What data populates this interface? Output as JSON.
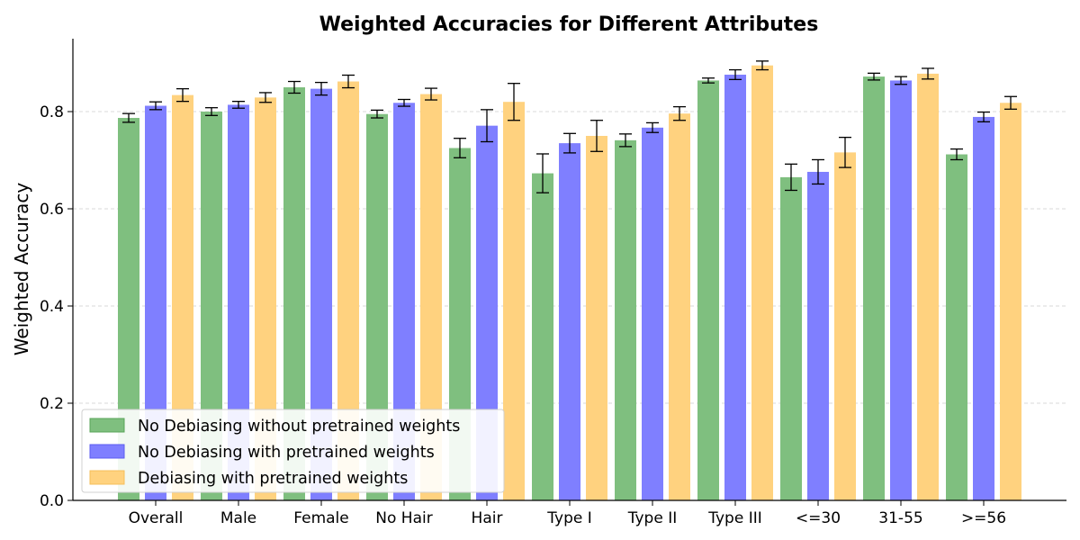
{
  "chart_data": {
    "type": "bar",
    "title": "Weighted Accuracies for Different Attributes",
    "xlabel": "",
    "ylabel": "Weighted Accuracy",
    "ylim": [
      0,
      0.95
    ],
    "yticks": [
      0.0,
      0.2,
      0.4,
      0.6,
      0.8
    ],
    "ytick_labels": [
      "0.0",
      "0.2",
      "0.4",
      "0.6",
      "0.8"
    ],
    "grid": "horizontal-dashed",
    "legend_position": "lower-left",
    "categories": [
      "Overall",
      "Male",
      "Female",
      "No Hair",
      "Hair",
      "Type I",
      "Type II",
      "Type III",
      "<=30",
      "31-55",
      ">=56"
    ],
    "series": [
      {
        "name": "No Debiasing without pretrained weights",
        "color": "#7fbf7f",
        "edge": "#5aa55a",
        "values": [
          0.787,
          0.8,
          0.85,
          0.795,
          0.725,
          0.673,
          0.741,
          0.864,
          0.665,
          0.872,
          0.712
        ],
        "errors": [
          0.009,
          0.008,
          0.012,
          0.008,
          0.02,
          0.04,
          0.013,
          0.005,
          0.027,
          0.007,
          0.011
        ]
      },
      {
        "name": "No Debiasing with pretrained weights",
        "color": "#7f7fff",
        "edge": "#5c5cf0",
        "values": [
          0.812,
          0.814,
          0.847,
          0.818,
          0.771,
          0.735,
          0.767,
          0.876,
          0.676,
          0.864,
          0.789
        ],
        "errors": [
          0.008,
          0.007,
          0.013,
          0.007,
          0.033,
          0.02,
          0.01,
          0.01,
          0.025,
          0.008,
          0.01
        ]
      },
      {
        "name": "Debiasing with pretrained weights",
        "color": "#ffd27f",
        "edge": "#f5bf5a",
        "values": [
          0.834,
          0.829,
          0.862,
          0.836,
          0.82,
          0.75,
          0.796,
          0.895,
          0.716,
          0.878,
          0.818
        ],
        "errors": [
          0.013,
          0.01,
          0.013,
          0.012,
          0.038,
          0.032,
          0.014,
          0.009,
          0.031,
          0.011,
          0.013
        ]
      }
    ]
  }
}
